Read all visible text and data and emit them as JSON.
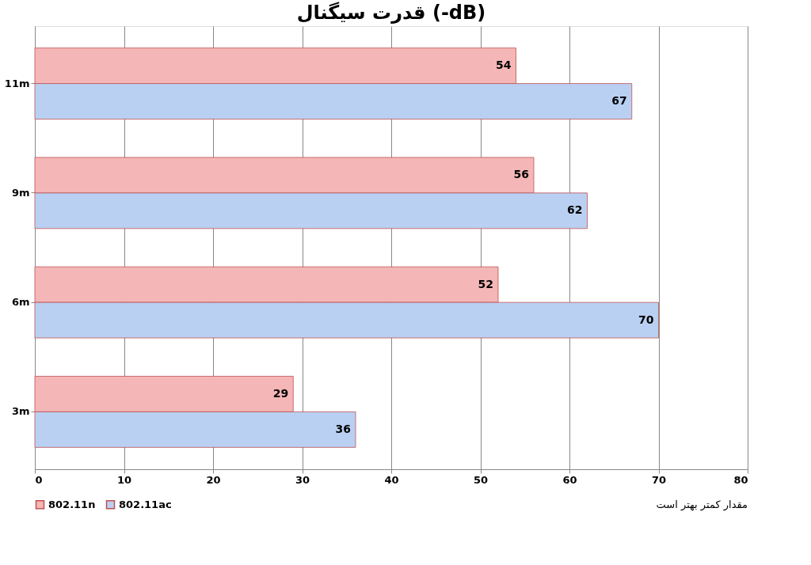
{
  "chart_data": {
    "type": "bar",
    "orientation": "horizontal",
    "title": "قدرت سیگنال (-dB)",
    "categories": [
      "11m",
      "9m",
      "6m",
      "3m"
    ],
    "series": [
      {
        "name": "802.11n",
        "color": "#f4b6b6",
        "values": [
          54,
          56,
          52,
          29
        ]
      },
      {
        "name": "802.11ac",
        "color": "#b9d0f2",
        "values": [
          67,
          62,
          70,
          36
        ]
      }
    ],
    "xlim": [
      0,
      80
    ],
    "xticks": [
      0,
      10,
      20,
      30,
      40,
      50,
      60,
      70,
      80
    ],
    "grid": "x",
    "legend": "bottom",
    "data_labels": true,
    "annotations": [
      "مقدار کمتر بهتر است"
    ]
  }
}
